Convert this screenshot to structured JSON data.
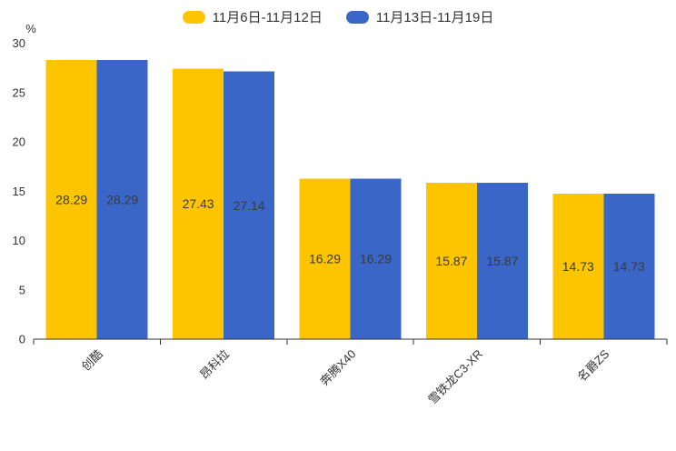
{
  "chart": {
    "unit_label": "%",
    "legend": [
      {
        "label": "11月6日-11月12日",
        "color": "#FDC500"
      },
      {
        "label": "11月13日-11月19日",
        "color": "#3A66C8"
      }
    ]
  },
  "chart_data": {
    "type": "bar",
    "title": "",
    "categories": [
      "创酷",
      "昂科拉",
      "奔腾X40",
      "雪铁龙C3-XR",
      "名爵ZS"
    ],
    "series": [
      {
        "name": "11月6日-11月12日",
        "color": "#FDC500",
        "values": [
          28.29,
          27.43,
          16.29,
          15.87,
          14.73
        ]
      },
      {
        "name": "11月13日-11月19日",
        "color": "#3A66C8",
        "values": [
          28.29,
          27.14,
          16.29,
          15.87,
          14.73
        ]
      }
    ],
    "xlabel": "",
    "ylabel": "%",
    "ylim": [
      0,
      30
    ],
    "ytick_step": 5,
    "yticks": [
      0,
      5,
      10,
      15,
      20,
      25,
      30
    ],
    "grid": false,
    "legend_position": "top-center",
    "value_labels": "inside-center",
    "value_label_color": "#3a3a3a",
    "axis_color": "#333333",
    "xlabel_rotation": -45,
    "bar_gap": 0
  }
}
